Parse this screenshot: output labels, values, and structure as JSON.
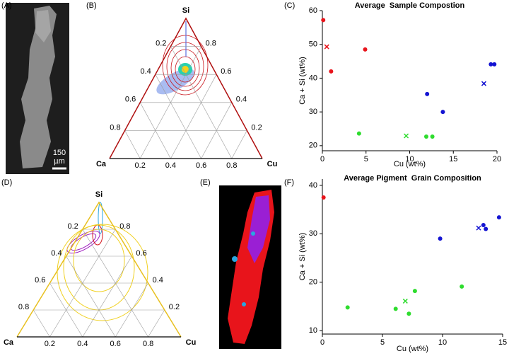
{
  "panels": {
    "labels": [
      "(A)",
      "(B)",
      "(C)",
      "(D)",
      "(E)",
      "(F)"
    ],
    "scale_bar": [
      "150",
      "µm"
    ]
  },
  "chart_data": [
    {
      "type": "ternary",
      "vertices": {
        "top": "Si",
        "left": "Ca",
        "right": "Cu"
      },
      "ticks": [
        0.2,
        0.4,
        0.6,
        0.8
      ]
    },
    {
      "type": "ternary",
      "vertices": {
        "top": "Si",
        "left": "Ca",
        "right": "Cu"
      },
      "ticks": [
        0.2,
        0.4,
        0.6,
        0.8
      ]
    },
    {
      "type": "scatter",
      "title": "Average  Sample Compostion",
      "x_label": "Cu (wt%)",
      "y_label": "Ca + Si (wt%)",
      "xlim": [
        0,
        20
      ],
      "ylim": [
        18.5,
        60
      ],
      "xticks": [
        0,
        5,
        10,
        15,
        20
      ],
      "yticks": [
        20,
        30,
        40,
        50,
        60
      ],
      "series": [
        {
          "color": "#e8141b",
          "marker": "o",
          "x": [
            0.1,
            1.0,
            4.9
          ],
          "values": [
            57.2,
            42.0,
            48.5
          ]
        },
        {
          "color": "#e8141b",
          "marker": "x",
          "x": [
            0.5
          ],
          "values": [
            49.3
          ]
        },
        {
          "color": "#2edc2e",
          "marker": "o",
          "x": [
            4.2,
            11.9,
            12.6
          ],
          "values": [
            23.6,
            22.7,
            22.7
          ]
        },
        {
          "color": "#2edc2e",
          "marker": "x",
          "x": [
            9.6
          ],
          "values": [
            22.9
          ]
        },
        {
          "color": "#1414d2",
          "marker": "o",
          "x": [
            12.0,
            13.8,
            19.3,
            19.7
          ],
          "values": [
            35.3,
            30.0,
            44.1,
            44.1
          ]
        },
        {
          "color": "#1414d2",
          "marker": "x",
          "x": [
            18.5
          ],
          "values": [
            38.4
          ]
        }
      ]
    },
    {
      "type": "scatter",
      "title": "Average Pigment  Grain Composition",
      "x_label": "Cu (wt%)",
      "y_label": "Ca + Si (wt%)",
      "xlim": [
        0,
        15
      ],
      "ylim": [
        9.3,
        41.3
      ],
      "xticks": [
        0,
        5,
        10,
        15
      ],
      "yticks": [
        10,
        20,
        30,
        40
      ],
      "series": [
        {
          "color": "#e8141b",
          "marker": "o",
          "x": [
            0.1
          ],
          "values": [
            37.5
          ]
        },
        {
          "color": "#2edc2e",
          "marker": "o",
          "x": [
            2.1,
            6.1,
            7.2,
            7.7,
            11.6
          ],
          "values": [
            14.8,
            14.5,
            13.5,
            18.2,
            19.1
          ]
        },
        {
          "color": "#2edc2e",
          "marker": "x",
          "x": [
            6.9
          ],
          "values": [
            16.1
          ]
        },
        {
          "color": "#1414d2",
          "marker": "o",
          "x": [
            9.8,
            13.4,
            13.6,
            14.7
          ],
          "values": [
            29.0,
            31.8,
            31.0,
            33.4
          ]
        },
        {
          "color": "#1414d2",
          "marker": "x",
          "x": [
            13.0
          ],
          "values": [
            31.2
          ]
        }
      ]
    }
  ]
}
